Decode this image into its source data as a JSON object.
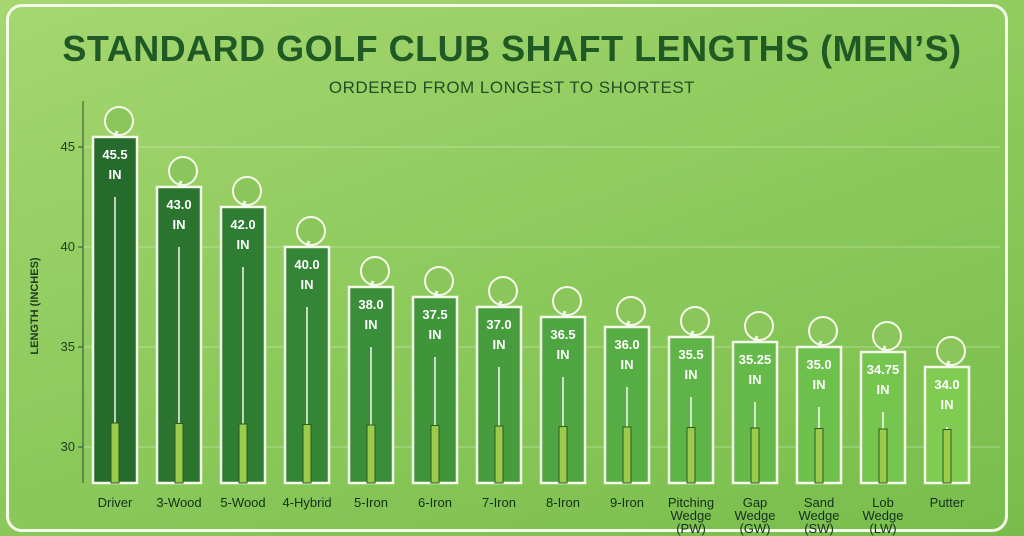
{
  "chart_data": {
    "type": "bar",
    "title": "STANDARD GOLF CLUB SHAFT LENGTHS (MEN’S)",
    "subtitle": "ORDERED FROM LONGEST TO SHORTEST",
    "y_label": "LENGTH (INCHES)",
    "categories": [
      "Driver",
      "3-Wood",
      "5-Wood",
      "4-Hybrid",
      "5-Iron",
      "6-Iron",
      "7-Iron",
      "8-Iron",
      "9-Iron",
      "Pitching Wedge (PW)",
      "Gap Wedge (GW)",
      "Sand Wedge (SW)",
      "Lob Wedge (LW)",
      "Putter"
    ],
    "values": [
      45.5,
      43.0,
      42.0,
      40.0,
      38.0,
      37.5,
      37.0,
      36.5,
      36.0,
      35.5,
      35.25,
      35.0,
      34.75,
      34.0
    ],
    "value_labels": [
      "45.5 IN",
      "43.0 IN",
      "42.0 IN",
      "40.0 IN",
      "38.0 IN",
      "37.5 IN",
      "37.0 IN",
      "36.5 IN",
      "36.0 IN",
      "35.5 IN",
      "35.25 IN",
      "35.0 IN",
      "34.75 IN",
      "34.0 IN"
    ],
    "colors": [
      "#256b2c",
      "#2b7430",
      "#2f7c33",
      "#348536",
      "#3a8d39",
      "#40953b",
      "#479d3e",
      "#4ea541",
      "#56ad44",
      "#5eb447",
      "#66ba4a",
      "#6ec04c",
      "#76c54e",
      "#80cb52"
    ],
    "ylim": [
      28.2,
      47.3
    ],
    "yticks": [
      30,
      35,
      40,
      45
    ],
    "grid": true
  }
}
